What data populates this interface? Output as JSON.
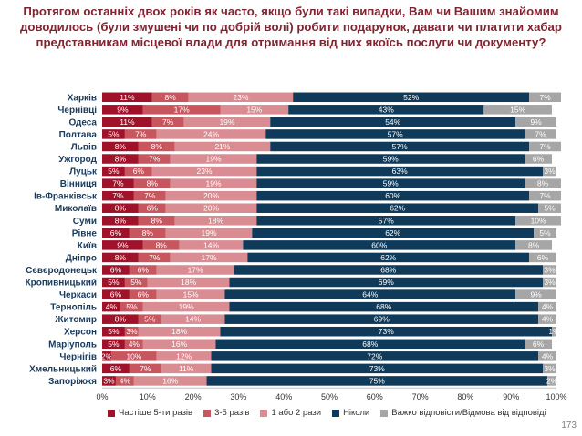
{
  "title": "Протягом останніх двох років як часто, якщо були такі випадки, Вам чи Вашим знайомим доводилось (були змушені чи по добрій волі) робити подарунок, давати чи платити хабар представникам місцевої влади для отримання від них якоїсь послуги чи документу?",
  "page_number": "173",
  "colors": [
    "#a0112a",
    "#c8565f",
    "#d98c91",
    "#0f3a5a",
    "#a6a6a6"
  ],
  "chart_data": {
    "type": "bar",
    "orientation": "horizontal",
    "stacked": true,
    "categories": [
      "Харків",
      "Чернівці",
      "Одеса",
      "Полтава",
      "Львів",
      "Ужгород",
      "Луцьк",
      "Вінниця",
      "Ів-Франківськ",
      "Миколаїв",
      "Суми",
      "Рівне",
      "Київ",
      "Дніпро",
      "Сєвєродонецьк",
      "Кропивницький",
      "Черкаси",
      "Тернопіль",
      "Житомир",
      "Херсон",
      "Маріуполь",
      "Чернігів",
      "Хмельницький",
      "Запоріжжя"
    ],
    "series": [
      {
        "name": "Частіше 5-ти разів",
        "values": [
          11,
          9,
          11,
          5,
          8,
          8,
          5,
          7,
          7,
          8,
          8,
          6,
          9,
          8,
          6,
          5,
          6,
          4,
          8,
          5,
          5,
          2,
          6,
          3
        ]
      },
      {
        "name": "3-5 разів",
        "values": [
          8,
          17,
          7,
          7,
          8,
          7,
          6,
          8,
          7,
          6,
          8,
          8,
          8,
          7,
          6,
          5,
          6,
          5,
          5,
          3,
          4,
          10,
          7,
          4
        ]
      },
      {
        "name": "1 або 2 рази",
        "values": [
          23,
          15,
          19,
          24,
          21,
          19,
          23,
          19,
          20,
          20,
          18,
          19,
          14,
          17,
          17,
          18,
          15,
          19,
          14,
          18,
          16,
          12,
          11,
          16
        ]
      },
      {
        "name": "Ніколи",
        "values": [
          52,
          43,
          54,
          57,
          57,
          59,
          63,
          59,
          60,
          62,
          57,
          62,
          60,
          62,
          68,
          69,
          64,
          68,
          69,
          73,
          68,
          72,
          73,
          75
        ]
      },
      {
        "name": "Важко відповісти/Відмова від відповіді",
        "values": [
          7,
          15,
          9,
          7,
          7,
          6,
          3,
          8,
          7,
          5,
          10,
          5,
          8,
          6,
          3,
          3,
          9,
          4,
          4,
          1,
          6,
          4,
          3,
          2
        ]
      }
    ],
    "xlim": [
      0,
      100
    ],
    "xticks": [
      "0%",
      "10%",
      "20%",
      "30%",
      "40%",
      "50%",
      "60%",
      "70%",
      "80%",
      "90%",
      "100%"
    ],
    "legend": "bottom",
    "grid": false
  }
}
